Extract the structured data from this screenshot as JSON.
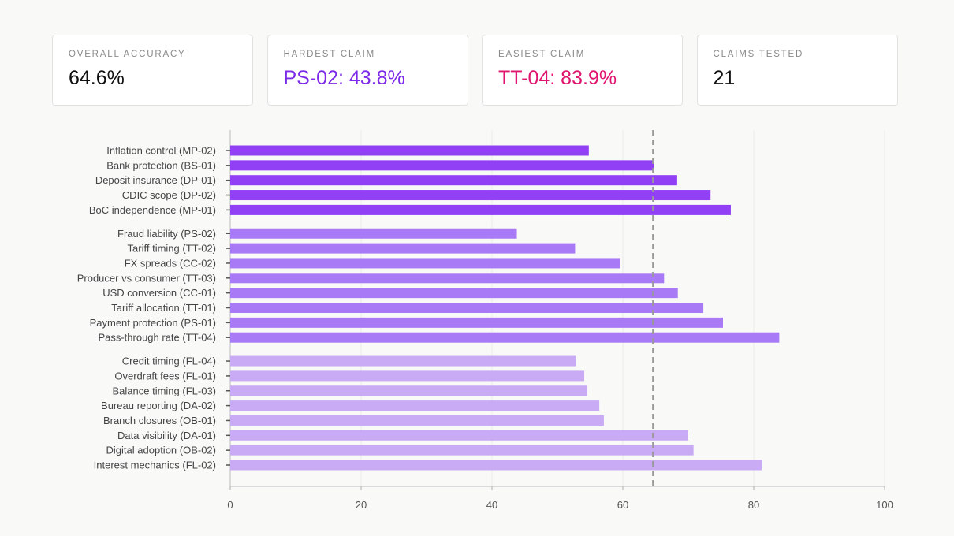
{
  "cards": [
    {
      "label": "OVERALL ACCURACY",
      "value": "64.6%",
      "color": "#111111"
    },
    {
      "label": "HARDEST CLAIM",
      "value": "PS-02: 43.8%",
      "color": "#7c2ae8"
    },
    {
      "label": "EASIEST CLAIM",
      "value": "TT-04: 83.9%",
      "color": "#e0156f"
    },
    {
      "label": "CLAIMS TESTED",
      "value": "21",
      "color": "#111111"
    }
  ],
  "chart_data": {
    "type": "bar",
    "orientation": "horizontal",
    "xlim": [
      0,
      100
    ],
    "xticks": [
      "0",
      "20",
      "40",
      "60",
      "80",
      "100"
    ],
    "grid": true,
    "reference_line": {
      "value": 64.6,
      "style": "dashed"
    },
    "groups": [
      {
        "color": "#9140f5",
        "categories": [
          "Inflation control (MP-02)",
          "Bank protection (BS-01)",
          "Deposit insurance (DP-01)",
          "CDIC scope (DP-02)",
          "BoC independence (MP-01)"
        ],
        "values": [
          54.8,
          64.7,
          68.3,
          73.4,
          76.5
        ]
      },
      {
        "color": "#a97af5",
        "categories": [
          "Fraud liability (PS-02)",
          "Tariff timing (TT-02)",
          "FX spreads (CC-02)",
          "Producer vs consumer (TT-03)",
          "USD conversion (CC-01)",
          "Tariff allocation (TT-01)",
          "Payment protection (PS-01)",
          "Pass-through rate (TT-04)"
        ],
        "values": [
          43.8,
          52.7,
          59.6,
          66.3,
          68.4,
          72.3,
          75.3,
          83.9
        ]
      },
      {
        "color": "#c9aaf5",
        "categories": [
          "Credit timing (FL-04)",
          "Overdraft fees (FL-01)",
          "Balance timing (FL-03)",
          "Bureau reporting (DA-02)",
          "Branch closures (OB-01)",
          "Data visibility (DA-01)",
          "Digital adoption (OB-02)",
          "Interest mechanics (FL-02)"
        ],
        "values": [
          52.8,
          54.1,
          54.5,
          56.4,
          57.1,
          70.0,
          70.8,
          81.2
        ]
      }
    ]
  }
}
